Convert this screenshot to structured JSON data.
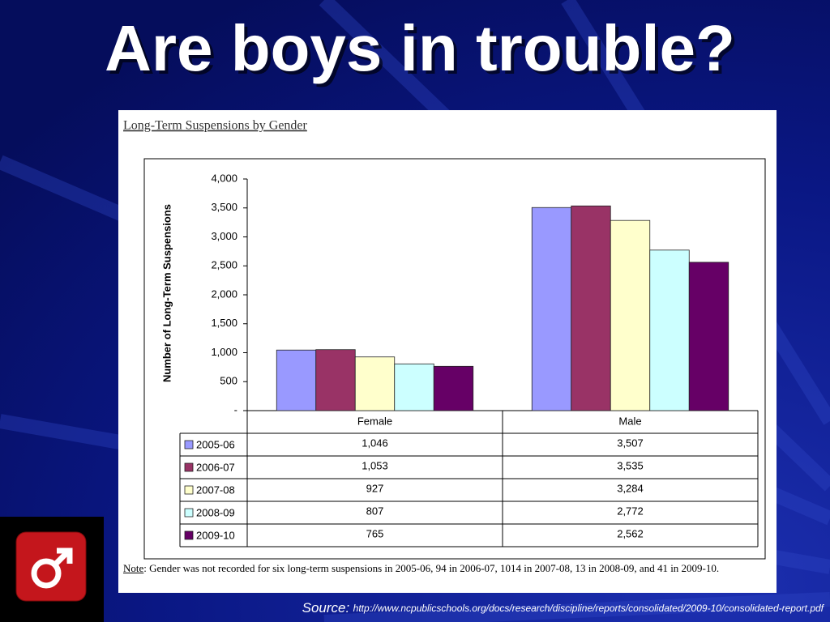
{
  "title": "Are boys in trouble?",
  "chart_data": {
    "type": "bar",
    "title": "Long-Term Suspensions by Gender",
    "y_label": "Number of Long-Term Suspensions",
    "categories": [
      "Female",
      "Male"
    ],
    "series": [
      {
        "name": "2005-06",
        "color": "#9999ff",
        "values": [
          1046,
          3507
        ],
        "value_labels": [
          "1,046",
          "3,507"
        ]
      },
      {
        "name": "2006-07",
        "color": "#993366",
        "values": [
          1053,
          3535
        ],
        "value_labels": [
          "1,053",
          "3,535"
        ]
      },
      {
        "name": "2007-08",
        "color": "#ffffcc",
        "values": [
          927,
          3284
        ],
        "value_labels": [
          "927",
          "3,284"
        ]
      },
      {
        "name": "2008-09",
        "color": "#ccffff",
        "values": [
          807,
          2772
        ],
        "value_labels": [
          "807",
          "2,772"
        ]
      },
      {
        "name": "2009-10",
        "color": "#660066",
        "values": [
          765,
          2562
        ],
        "value_labels": [
          "765",
          "2,562"
        ]
      }
    ],
    "ylim": [
      0,
      4000
    ],
    "yticks": [
      {
        "value": 0,
        "label": "-"
      },
      500,
      {
        "value": 1000,
        "label": "1,000"
      },
      {
        "value": 1500,
        "label": "1,500"
      },
      {
        "value": 2000,
        "label": "2,000"
      },
      {
        "value": 2500,
        "label": "2,500"
      },
      {
        "value": 3000,
        "label": "3,000"
      },
      {
        "value": 3500,
        "label": "3,500"
      },
      {
        "value": 4000,
        "label": "4,000"
      }
    ]
  },
  "note": {
    "label": "Note",
    "text": ": Gender was not recorded for six long-term suspensions in 2005-06, 94 in 2006-07,  1014 in 2007-08, 13 in 2008-09, and 41 in 2009-10."
  },
  "source": {
    "label": "Source:",
    "url": "http://www.ncpublicschools.org/docs/research/discipline/reports/consolidated/2009-10/consolidated-report.pdf"
  }
}
